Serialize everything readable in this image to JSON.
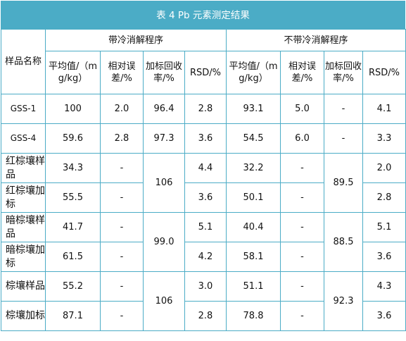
{
  "title": "表 4 Pb 元素测定结果",
  "header": {
    "sample_col": "样品名称",
    "group_with_cooling": "带冷消解程序",
    "group_without_cooling": "不带冷消解程序",
    "cols_with": [
      "平均值/（mg/kg）",
      "相对误差/%",
      "加标回收率/%",
      "RSD/%"
    ],
    "cols_without": [
      "平均值/（mg/kg）",
      "相对误差/%",
      "加标回收率/%",
      "RSD/%"
    ]
  },
  "rows": [
    {
      "sample": "GSS-1",
      "w_mean": "100",
      "w_err": "2.0",
      "w_rec": "96.4",
      "w_rsd": "2.8",
      "n_mean": "93.1",
      "n_err": "5.0",
      "n_rec": "-",
      "n_rsd": "4.1"
    },
    {
      "sample": "GSS-4",
      "w_mean": "59.6",
      "w_err": "2.8",
      "w_rec": "97.3",
      "w_rsd": "3.6",
      "n_mean": "54.5",
      "n_err": "6.0",
      "n_rec": "-",
      "n_rsd": "3.3"
    },
    {
      "sample": "红棕壤样品",
      "w_mean": "34.3",
      "w_err": "-",
      "w_rec": "106",
      "w_rsd": "4.4",
      "n_mean": "32.2",
      "n_err": "-",
      "n_rec": "89.5",
      "n_rsd": "2.0"
    },
    {
      "sample": "红棕壤加标",
      "w_mean": "55.5",
      "w_err": "-",
      "w_rsd": "3.6",
      "n_mean": "50.1",
      "n_err": "-",
      "n_rsd": "2.8"
    },
    {
      "sample": "暗棕壤样品",
      "w_mean": "41.7",
      "w_err": "-",
      "w_rec": "99.0",
      "w_rsd": "5.1",
      "n_mean": "40.4",
      "n_err": "-",
      "n_rec": "88.5",
      "n_rsd": "5.1"
    },
    {
      "sample": "暗棕壤加标",
      "w_mean": "61.5",
      "w_err": "-",
      "w_rsd": "4.2",
      "n_mean": "58.1",
      "n_err": "-",
      "n_rsd": "3.6"
    },
    {
      "sample": "棕壤样品",
      "w_mean": "55.2",
      "w_err": "-",
      "w_rec": "106",
      "w_rsd": "3.0",
      "n_mean": "51.1",
      "n_err": "-",
      "n_rec": "92.3",
      "n_rsd": "4.3"
    },
    {
      "sample": "棕壤加标",
      "w_mean": "87.1",
      "w_err": "-",
      "w_rsd": "2.8",
      "n_mean": "78.8",
      "n_err": "-",
      "n_rsd": "3.6"
    }
  ]
}
